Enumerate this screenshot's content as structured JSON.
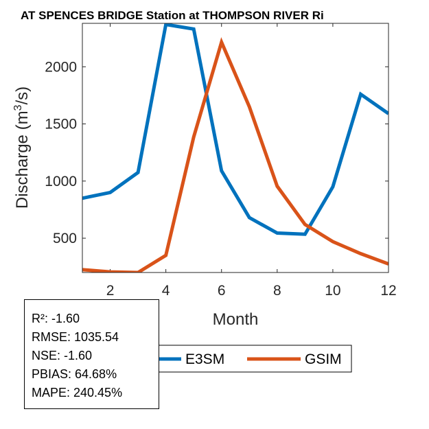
{
  "chart_data": {
    "type": "line",
    "title": "AT SPENCES BRIDGE  Station at  THOMPSON RIVER  Ri",
    "xlabel": "Month",
    "ylabel": "Discharge (m³/s)",
    "ylabel_parts": {
      "prefix": "Discharge (m",
      "sup": "3",
      "suffix": "/s)"
    },
    "xlim": [
      1,
      12
    ],
    "ylim": [
      200,
      2380
    ],
    "xticks": [
      2,
      4,
      6,
      8,
      10,
      12
    ],
    "yticks": [
      500,
      1000,
      1500,
      2000
    ],
    "x": [
      1,
      2,
      3,
      4,
      5,
      6,
      7,
      8,
      9,
      10,
      11,
      12
    ],
    "series": [
      {
        "name": "E3SM",
        "color": "#0072BD",
        "values": [
          850,
          900,
          1075,
          2370,
          2330,
          1090,
          680,
          545,
          535,
          950,
          1760,
          1590
        ]
      },
      {
        "name": "GSIM",
        "color": "#D95319",
        "values": [
          225,
          205,
          200,
          350,
          1385,
          2215,
          1650,
          955,
          620,
          470,
          365,
          275
        ]
      }
    ],
    "legend_position": "bottom",
    "grid": false
  },
  "stats": [
    "R²: -1.60",
    "RMSE: 1035.54",
    "NSE: -1.60",
    "PBIAS: 64.68%",
    "MAPE: 240.45%"
  ]
}
